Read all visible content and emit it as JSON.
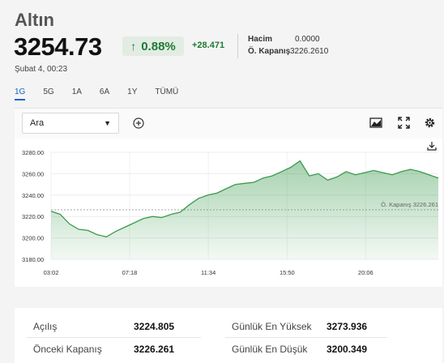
{
  "header": {
    "title": "Altın",
    "price": "3254.73",
    "change_pct": "0.88%",
    "change_abs": "+28.471",
    "date": "Şubat 4, 00:23",
    "volume_label": "Hacim",
    "volume_value": "0.0000",
    "prev_close_label": "Ö. Kapanış",
    "prev_close_value": "3226.2610",
    "accent_color": "#1f7a32"
  },
  "tabs": [
    {
      "label": "1G",
      "active": true
    },
    {
      "label": "5G"
    },
    {
      "label": "1A"
    },
    {
      "label": "6A"
    },
    {
      "label": "1Y"
    },
    {
      "label": "TÜMÜ"
    }
  ],
  "toolbar": {
    "select_value": "Ara",
    "icons": [
      "chart-type-icon",
      "fullscreen-icon",
      "settings-icon",
      "download-icon",
      "plus-circle-icon"
    ]
  },
  "chart_data": {
    "type": "area",
    "x_ticks": [
      "03:02",
      "07:18",
      "11:34",
      "15:50",
      "20:06"
    ],
    "y_ticks": [
      3180,
      3200,
      3220,
      3240,
      3260,
      3280
    ],
    "y_tick_labels": [
      "3180.00",
      "3200.00",
      "3220.00",
      "3240.00",
      "3260.00",
      "3280.00"
    ],
    "ylim": [
      3180,
      3280
    ],
    "x_hours": [
      0,
      0.5,
      1,
      1.5,
      2,
      2.5,
      3,
      3.5,
      4,
      4.5,
      5,
      5.5,
      6,
      6.5,
      7,
      7.5,
      8,
      8.5,
      9,
      9.5,
      10,
      10.5,
      11,
      11.5,
      12,
      12.5,
      13,
      13.5,
      14,
      14.5,
      15,
      15.5,
      16,
      16.5,
      17,
      17.5,
      18,
      18.5,
      19,
      19.5,
      20,
      20.5,
      21
    ],
    "values": [
      3225,
      3222,
      3213,
      3208,
      3207,
      3203,
      3201,
      3206,
      3210,
      3214,
      3218,
      3220,
      3219,
      3222,
      3224,
      3231,
      3237,
      3240,
      3242,
      3246,
      3250,
      3251,
      3252,
      3256,
      3258,
      3262,
      3266,
      3272,
      3258,
      3260,
      3254,
      3257,
      3262,
      3259,
      3261,
      3263,
      3261,
      3259,
      3262,
      3264,
      3262,
      3259,
      3256
    ],
    "series_color": "#3a9a4c",
    "reference_line_label": "Ö. Kapanış 3226.261",
    "reference_value": 3226.261,
    "grid": true
  },
  "stats": [
    {
      "label": "Açılış",
      "value": "3224.805"
    },
    {
      "label": "Günlük En Yüksek",
      "value": "3273.936"
    },
    {
      "label": "Önceki Kapanış",
      "value": "3226.261"
    },
    {
      "label": "Günlük En Düşük",
      "value": "3200.349"
    }
  ]
}
